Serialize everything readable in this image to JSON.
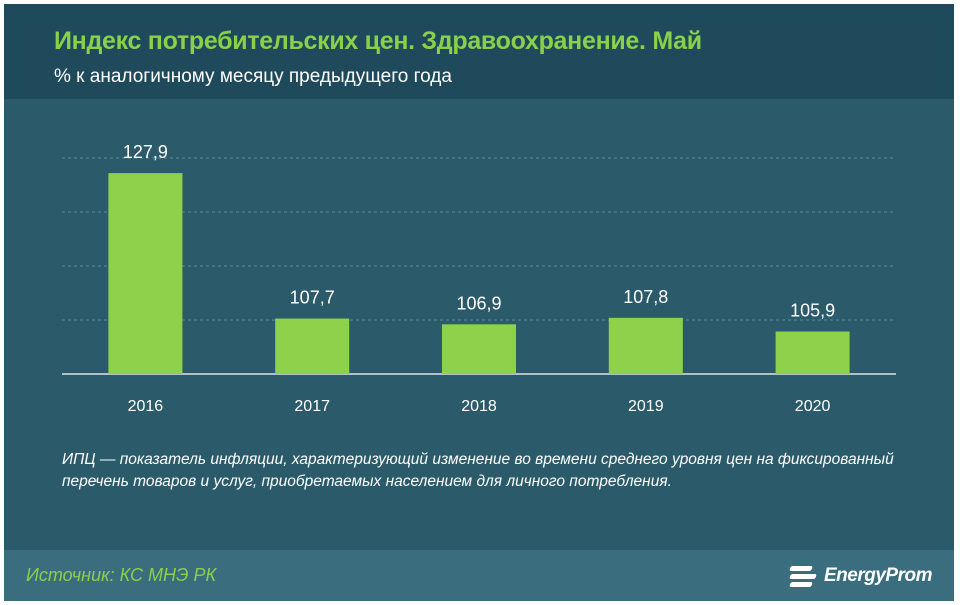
{
  "header": {
    "title": "Индекс потребительских цен. Здравоохранение. Май",
    "subtitle": "% к аналогичному месяцу предыдущего года"
  },
  "chart_data": {
    "type": "bar",
    "categories": [
      "2016",
      "2017",
      "2018",
      "2019",
      "2020"
    ],
    "values": [
      127.9,
      107.7,
      106.9,
      107.8,
      105.9
    ],
    "value_labels": [
      "127,9",
      "107,7",
      "106,9",
      "107,8",
      "105,9"
    ],
    "title": "Индекс потребительских цен. Здравоохранение. Май",
    "subtitle": "% к аналогичному месяцу предыдущего года",
    "xlabel": "",
    "ylabel": "",
    "ylim": [
      100,
      130
    ],
    "grid": true,
    "legend": "none",
    "bar_color": "#8ed14a"
  },
  "note": "ИПЦ — показатель инфляции, характеризующий изменение во времени среднего уровня цен на фиксированный перечень товаров и услуг, приобретаемых населением для личного потребления.",
  "footer": {
    "source": "Источник: КС МНЭ РК",
    "logo_text": "EnergyProm"
  },
  "colors": {
    "header_bg": "#1e4a5c",
    "body_bg": "#2b5b6b",
    "footer_bg": "#3a6e7f",
    "accent": "#8ad04a"
  }
}
